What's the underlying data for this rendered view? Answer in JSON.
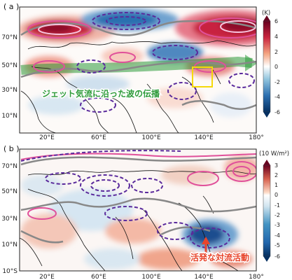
{
  "panel_a": {
    "label": "( a )",
    "unit": "(K)",
    "annotation": "ジェット気流に沿った波の伝播",
    "annotation_color": "#2e9b3a",
    "y_ticks": [
      "70°N",
      "50°N",
      "30°N",
      "10°N"
    ],
    "x_ticks": [
      "20°E",
      "60°E",
      "100°E",
      "140°E",
      "180°"
    ],
    "colorbar_ticks": [
      "6",
      "4",
      "2",
      "0",
      "-2",
      "-4",
      "-6"
    ]
  },
  "panel_b": {
    "label": "( b )",
    "unit": "(10 W/m²)",
    "annotation": "活発な対流活動",
    "annotation_color": "#e8452c",
    "y_ticks": [
      "70°N",
      "50°N",
      "30°N",
      "10°N",
      "10°S"
    ],
    "x_ticks": [
      "20°E",
      "60°E",
      "100°E",
      "140°E",
      "180°"
    ],
    "colorbar_ticks": [
      "3",
      "2",
      "1",
      "0",
      "-1",
      "-2",
      "-3",
      "-4",
      "-5",
      "-6"
    ]
  },
  "colors": {
    "warm": "#c8243f",
    "cool": "#2c6fb0",
    "positive_contour": "#e0509a",
    "negative_contour": "#5a2a9c",
    "jet_contour": "#888888",
    "highlight_box": "#f5d90a"
  }
}
